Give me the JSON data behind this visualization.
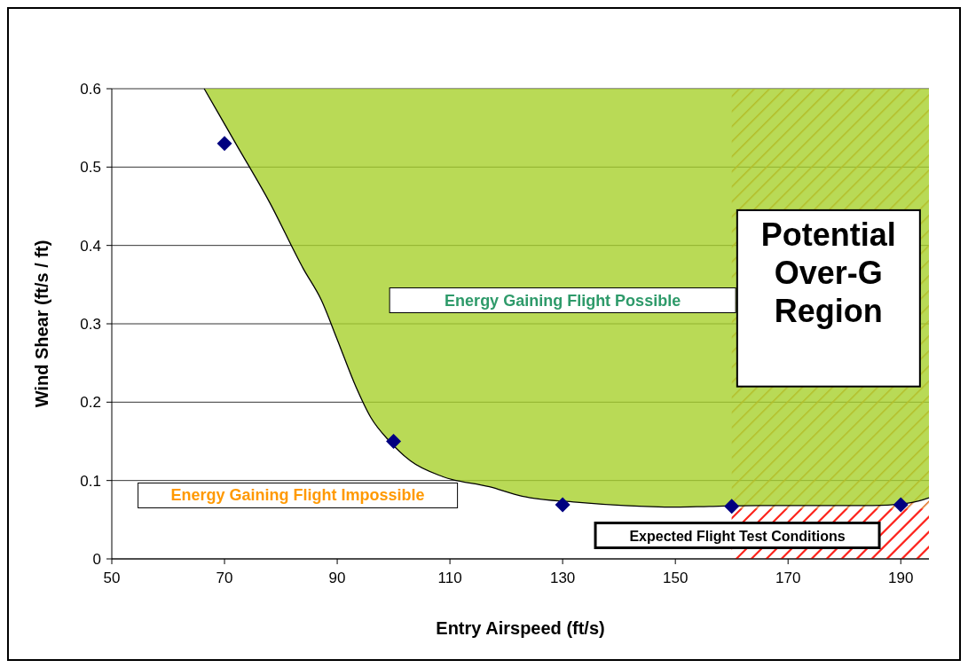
{
  "chart_data": {
    "type": "line",
    "xlabel": "Entry Airspeed (ft/s)",
    "ylabel": "Wind Shear (ft/s / ft)",
    "xlim": [
      50,
      195
    ],
    "ylim": [
      0,
      0.6
    ],
    "xticks": [
      50,
      70,
      90,
      110,
      130,
      150,
      170,
      190
    ],
    "yticks": [
      0,
      0.1,
      0.2,
      0.3,
      0.4,
      0.5,
      0.6
    ],
    "grid": "y",
    "series": [
      {
        "color": "#000000",
        "x": [
          66.4,
          72,
          78,
          84,
          87.2,
          90,
          93.3,
          96,
          99.3,
          103,
          108.7,
          117,
          122.8,
          133,
          141,
          150,
          156,
          165,
          175,
          185,
          192,
          195
        ],
        "values": [
          0.6,
          0.53,
          0.455,
          0.37,
          0.33,
          0.28,
          0.22,
          0.18,
          0.15,
          0.125,
          0.105,
          0.092,
          0.08,
          0.072,
          0.068,
          0.066,
          0.067,
          0.068,
          0.068,
          0.068,
          0.072,
          0.078
        ],
        "lower": [
          0.6,
          0.53,
          0.455,
          0.37,
          0.33,
          0.28,
          0.22,
          0.18,
          0.15,
          0.125,
          0.105,
          0.092,
          0.08,
          0.072,
          0.068,
          0.066,
          0.067,
          0.068,
          0.068,
          0.068,
          0.072,
          0.078
        ],
        "upper": [
          0.6,
          0.6,
          0.6,
          0.6,
          0.6,
          0.6,
          0.6,
          0.6,
          0.6,
          0.6,
          0.6,
          0.6,
          0.6,
          0.6,
          0.6,
          0.6,
          0.6,
          0.6,
          0.6,
          0.6,
          0.6,
          0.6
        ]
      },
      {
        "type": "scatter",
        "color": "#000080",
        "marker": "diamond",
        "x": [
          70,
          100,
          130,
          160,
          190
        ],
        "values": [
          0.53,
          0.15,
          0.069,
          0.067,
          0.069
        ]
      }
    ],
    "bands": [
      {
        "axis": "x",
        "from": 160,
        "to": 195,
        "label": "Potential Over-G Region",
        "color": "#e07020"
      }
    ],
    "annotations": [
      "Energy Gaining Flight Possible",
      "Energy Gaining Flight Impossible",
      "Expected Flight Test Conditions"
    ]
  }
}
